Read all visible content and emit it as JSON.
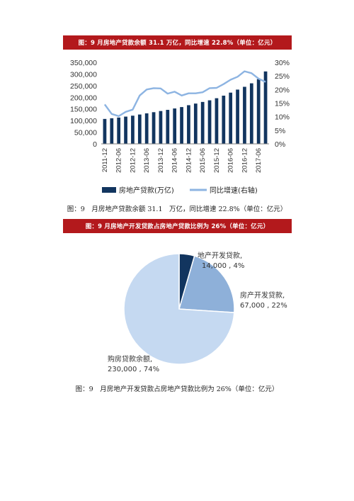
{
  "banners": {
    "chart1": "图：9 月房地产贷款余额 31.1 万亿，同比增速 22.8%（单位：亿元）",
    "chart2": "图：9 月房地产开发贷款占房地产贷款比例为 26%（单位：亿元）"
  },
  "captions": {
    "chart1": "图：9　月房地产贷款余额 31.1　万亿，同比增速 22.8%（单位：亿元）",
    "chart2": "图：9　月房地产开发贷款占房地产贷款比例为 26%（单位：亿元）"
  },
  "colors": {
    "banner": "#b3191c",
    "bar": "#12355f",
    "line": "#8db4e2",
    "pie_dark": "#12355f",
    "pie_mid": "#8eb0d9",
    "pie_light": "#c5d9f1"
  },
  "chart_data": [
    {
      "type": "bar",
      "categories": [
        "2011-12",
        "2012-03",
        "2012-06",
        "2012-09",
        "2012-12",
        "2013-03",
        "2013-06",
        "2013-09",
        "2013-12",
        "2014-03",
        "2014-06",
        "2014-09",
        "2014-12",
        "2015-03",
        "2015-06",
        "2015-09",
        "2015-12",
        "2016-03",
        "2016-06",
        "2016-09",
        "2016-12",
        "2017-03",
        "2017-06",
        "2017-09"
      ],
      "x_tick_labels": [
        "2011-12",
        "2012-06",
        "2012-12",
        "2013-06",
        "2013-12",
        "2014-06",
        "2014-12",
        "2015-06",
        "2015-12",
        "2016-06",
        "2016-12",
        "2017-06"
      ],
      "series": [
        {
          "name": "房地产贷款(万亿)",
          "type": "bar",
          "axis": "left",
          "values": [
            107000,
            110000,
            113000,
            117000,
            121000,
            126000,
            131000,
            136000,
            141000,
            146000,
            152000,
            158000,
            166000,
            173000,
            180000,
            187000,
            196000,
            207000,
            220000,
            233000,
            245000,
            260000,
            278000,
            311000
          ]
        },
        {
          "name": "同比增速(右轴)",
          "type": "line",
          "axis": "right",
          "values": [
            14.5,
            11.0,
            10.2,
            11.8,
            12.6,
            17.8,
            20.0,
            20.5,
            20.4,
            18.5,
            19.2,
            17.8,
            18.6,
            18.6,
            19.0,
            20.5,
            20.6,
            22.0,
            23.6,
            24.7,
            26.7,
            26.0,
            24.0,
            22.8
          ]
        }
      ],
      "y_left": {
        "range": [
          0,
          350000
        ],
        "ticks": [
          "0",
          "50,000",
          "100,000",
          "150,000",
          "200,000",
          "250,000",
          "300,000",
          "350,000"
        ]
      },
      "y_right": {
        "range": [
          0,
          30
        ],
        "ticks": [
          "0%",
          "5%",
          "10%",
          "15%",
          "20%",
          "25%",
          "30%"
        ]
      },
      "grid": false,
      "legend_position": "bottom"
    },
    {
      "type": "pie",
      "slices": [
        {
          "name": "地产开发贷款",
          "value": 14000,
          "percent": "4%",
          "label": "地产开发贷款,",
          "value_label": "14,000 , 4%"
        },
        {
          "name": "房产开发贷款",
          "value": 67000,
          "percent": "22%",
          "label": "房产开发贷款,",
          "value_label": "67,000 , 22%"
        },
        {
          "name": "购房贷款余额",
          "value": 230000,
          "percent": "74%",
          "label": "购房贷款余额,",
          "value_label": "230,000 , 74%"
        }
      ]
    }
  ]
}
